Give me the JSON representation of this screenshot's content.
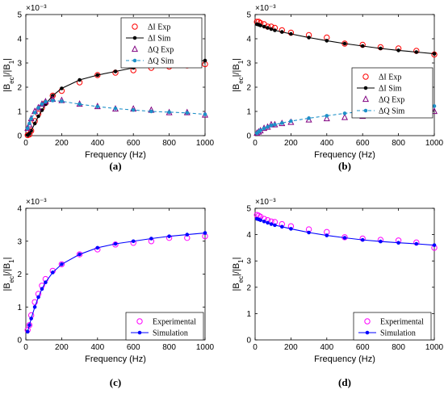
{
  "chart_data": [
    {
      "panel": "(a)",
      "type": "line",
      "xlabel": "Frequency (Hz)",
      "ylabel": "|B_ec|/|B_1|",
      "y_multiplier": "×10⁻³",
      "xlim": [
        0,
        1000
      ],
      "ylim": [
        0,
        5
      ],
      "xticks": [
        0,
        200,
        400,
        600,
        800,
        1000
      ],
      "yticks": [
        0,
        1,
        2,
        3,
        4,
        5
      ],
      "legend_position": "top-right",
      "series": [
        {
          "name": "ΔI Exp",
          "style": "marker",
          "marker": "circle",
          "color": "#ff0000",
          "x": [
            10,
            20,
            30,
            50,
            70,
            90,
            110,
            150,
            200,
            300,
            400,
            500,
            600,
            700,
            800,
            900,
            1000
          ],
          "y": [
            0.02,
            0.05,
            0.2,
            0.6,
            0.9,
            1.15,
            1.35,
            1.65,
            1.85,
            2.2,
            2.5,
            2.6,
            2.7,
            2.8,
            2.85,
            2.9,
            2.95
          ]
        },
        {
          "name": "ΔI Sim",
          "style": "solid",
          "marker": "dot",
          "color": "#000000",
          "x": [
            10,
            20,
            30,
            50,
            70,
            90,
            110,
            150,
            200,
            300,
            400,
            500,
            600,
            700,
            800,
            900,
            1000
          ],
          "y": [
            0.02,
            0.08,
            0.2,
            0.5,
            0.8,
            1.05,
            1.3,
            1.65,
            1.95,
            2.3,
            2.5,
            2.65,
            2.8,
            2.9,
            3.0,
            3.05,
            3.1
          ]
        },
        {
          "name": "ΔQ Exp",
          "style": "marker",
          "marker": "triangle",
          "color": "#800080",
          "x": [
            10,
            20,
            30,
            50,
            70,
            90,
            110,
            150,
            200,
            300,
            400,
            500,
            600,
            700,
            800,
            900,
            1000
          ],
          "y": [
            0.3,
            0.45,
            0.7,
            1.0,
            1.15,
            1.3,
            1.4,
            1.5,
            1.45,
            1.3,
            1.2,
            1.1,
            1.1,
            1.05,
            0.95,
            0.95,
            0.85
          ]
        },
        {
          "name": "ΔQ Sim",
          "style": "dashed",
          "marker": "dot",
          "color": "#1e90c8",
          "x": [
            10,
            20,
            30,
            50,
            70,
            90,
            110,
            150,
            200,
            300,
            400,
            500,
            600,
            700,
            800,
            900,
            1000
          ],
          "y": [
            0.3,
            0.5,
            0.7,
            0.95,
            1.15,
            1.3,
            1.4,
            1.45,
            1.42,
            1.3,
            1.2,
            1.12,
            1.06,
            1.0,
            0.97,
            0.94,
            0.88
          ]
        }
      ]
    },
    {
      "panel": "(b)",
      "type": "line",
      "xlabel": "Frequency (Hz)",
      "ylabel": "|B_ec|/|B_1|",
      "y_multiplier": "×10⁻³",
      "xlim": [
        0,
        1000
      ],
      "ylim": [
        0,
        5
      ],
      "xticks": [
        0,
        200,
        400,
        600,
        800,
        1000
      ],
      "yticks": [
        0,
        1,
        2,
        3,
        4,
        5
      ],
      "legend_position": "middle-right",
      "series": [
        {
          "name": "ΔI Exp",
          "style": "marker",
          "marker": "circle",
          "color": "#ff0000",
          "x": [
            10,
            20,
            30,
            50,
            70,
            90,
            110,
            150,
            200,
            300,
            400,
            500,
            600,
            700,
            800,
            900,
            1000
          ],
          "y": [
            4.7,
            4.7,
            4.65,
            4.6,
            4.5,
            4.5,
            4.45,
            4.35,
            4.25,
            4.15,
            4.05,
            3.8,
            3.75,
            3.65,
            3.6,
            3.5,
            3.35
          ]
        },
        {
          "name": "ΔI Sim",
          "style": "solid",
          "marker": "dot",
          "color": "#000000",
          "x": [
            10,
            20,
            30,
            50,
            70,
            90,
            110,
            150,
            200,
            300,
            400,
            500,
            600,
            700,
            800,
            900,
            1000
          ],
          "y": [
            4.6,
            4.58,
            4.55,
            4.5,
            4.45,
            4.4,
            4.35,
            4.28,
            4.2,
            4.05,
            3.92,
            3.8,
            3.7,
            3.6,
            3.52,
            3.45,
            3.38
          ]
        },
        {
          "name": "ΔQ Exp",
          "style": "marker",
          "marker": "triangle",
          "color": "#800080",
          "x": [
            10,
            20,
            30,
            50,
            70,
            90,
            110,
            150,
            200,
            300,
            400,
            500,
            600,
            700,
            800,
            900,
            1000
          ],
          "y": [
            0.1,
            0.15,
            0.2,
            0.3,
            0.35,
            0.45,
            0.45,
            0.5,
            0.55,
            0.65,
            0.7,
            0.75,
            0.8,
            0.85,
            0.9,
            0.95,
            1.0
          ]
        },
        {
          "name": "ΔQ Sim",
          "style": "dashed",
          "marker": "dot",
          "color": "#1e90c8",
          "x": [
            10,
            20,
            30,
            50,
            70,
            90,
            110,
            150,
            200,
            300,
            400,
            500,
            600,
            700,
            800,
            900,
            1000
          ],
          "y": [
            0.1,
            0.16,
            0.22,
            0.3,
            0.36,
            0.42,
            0.46,
            0.52,
            0.6,
            0.72,
            0.82,
            0.92,
            1.0,
            1.06,
            1.12,
            1.18,
            1.22
          ]
        }
      ]
    },
    {
      "panel": "(c)",
      "type": "line",
      "xlabel": "Frequency (Hz)",
      "ylabel": "|B_ec|/|B_1|",
      "y_multiplier": "×10⁻³",
      "xlim": [
        0,
        1000
      ],
      "ylim": [
        0,
        4
      ],
      "xticks": [
        0,
        200,
        400,
        600,
        800,
        1000
      ],
      "yticks": [
        0,
        1,
        2,
        3,
        4
      ],
      "legend_position": "bottom-right",
      "series": [
        {
          "name": "Experimental",
          "style": "marker",
          "marker": "circle",
          "color": "#ff00ff",
          "x": [
            10,
            20,
            30,
            50,
            70,
            90,
            110,
            150,
            200,
            300,
            400,
            500,
            600,
            700,
            800,
            900,
            1000
          ],
          "y": [
            0.3,
            0.45,
            0.75,
            1.15,
            1.4,
            1.65,
            1.85,
            2.1,
            2.3,
            2.6,
            2.75,
            2.9,
            2.95,
            3.0,
            3.1,
            3.1,
            3.15
          ]
        },
        {
          "name": "Simulation",
          "style": "solid",
          "marker": "dot",
          "color": "#0000ff",
          "x": [
            10,
            20,
            30,
            50,
            70,
            90,
            110,
            150,
            200,
            300,
            400,
            500,
            600,
            700,
            800,
            900,
            1000
          ],
          "y": [
            0.25,
            0.45,
            0.65,
            1.0,
            1.3,
            1.55,
            1.75,
            2.05,
            2.3,
            2.6,
            2.8,
            2.92,
            3.0,
            3.08,
            3.15,
            3.2,
            3.25
          ]
        }
      ]
    },
    {
      "panel": "(d)",
      "type": "line",
      "xlabel": "Frequency (Hz)",
      "ylabel": "|B_ec|/|B_1|",
      "y_multiplier": "×10⁻³",
      "xlim": [
        0,
        1000
      ],
      "ylim": [
        0,
        5
      ],
      "xticks": [
        0,
        200,
        400,
        600,
        800,
        1000
      ],
      "yticks": [
        0,
        1,
        2,
        3,
        4,
        5
      ],
      "legend_position": "bottom-right",
      "series": [
        {
          "name": "Experimental",
          "style": "marker",
          "marker": "circle",
          "color": "#ff00ff",
          "x": [
            10,
            20,
            30,
            50,
            70,
            90,
            110,
            150,
            200,
            300,
            400,
            500,
            600,
            700,
            800,
            900,
            1000
          ],
          "y": [
            4.75,
            4.72,
            4.68,
            4.6,
            4.55,
            4.5,
            4.48,
            4.4,
            4.32,
            4.2,
            4.1,
            3.9,
            3.85,
            3.8,
            3.78,
            3.7,
            3.5
          ]
        },
        {
          "name": "Simulation",
          "style": "solid",
          "marker": "dot",
          "color": "#0000ff",
          "x": [
            10,
            20,
            30,
            50,
            70,
            90,
            110,
            150,
            200,
            300,
            400,
            500,
            600,
            700,
            800,
            900,
            1000
          ],
          "y": [
            4.6,
            4.58,
            4.55,
            4.5,
            4.45,
            4.4,
            4.36,
            4.3,
            4.22,
            4.08,
            3.97,
            3.88,
            3.8,
            3.74,
            3.69,
            3.65,
            3.6
          ]
        }
      ]
    }
  ]
}
